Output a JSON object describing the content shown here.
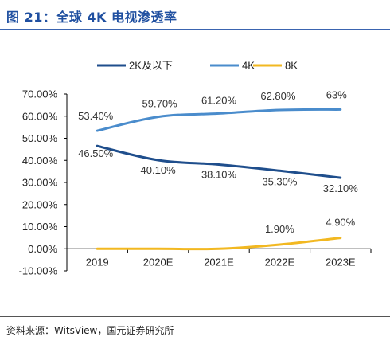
{
  "figure": {
    "title": "图 21：全球 4K 电视渗透率",
    "source": "资料来源：WitsView，国元证券研究所"
  },
  "colors": {
    "title": "#1f4fa0",
    "series_2k": "#1f4e8c",
    "series_4k": "#4a8ccc",
    "series_8k": "#f2b821"
  },
  "chart_data": {
    "type": "line",
    "title": "",
    "xlabel": "",
    "ylabel": "",
    "x": [
      "2019",
      "2020E",
      "2021E",
      "2022E",
      "2023E"
    ],
    "ylim": [
      -0.1,
      0.7
    ],
    "yticks": [
      "-10.00%",
      "0.00%",
      "10.00%",
      "20.00%",
      "30.00%",
      "40.00%",
      "50.00%",
      "60.00%",
      "70.00%"
    ],
    "grid": false,
    "legend_position": "top",
    "series": [
      {
        "name": "2K及以下",
        "color": "#1f4e8c",
        "values": [
          0.465,
          0.401,
          0.381,
          0.353,
          0.321
        ],
        "labels": [
          "46.50%",
          "40.10%",
          "38.10%",
          "35.30%",
          "32.10%"
        ]
      },
      {
        "name": "4K",
        "color": "#4a8ccc",
        "values": [
          0.534,
          0.597,
          0.612,
          0.628,
          0.63
        ],
        "labels": [
          "53.40%",
          "59.70%",
          "61.20%",
          "62.80%",
          "63%"
        ]
      },
      {
        "name": "8K",
        "color": "#f2b821",
        "values": [
          0,
          0,
          0,
          0.019,
          0.049
        ],
        "labels": [
          "",
          "",
          "",
          "1.90%",
          "4.90%"
        ]
      }
    ]
  }
}
